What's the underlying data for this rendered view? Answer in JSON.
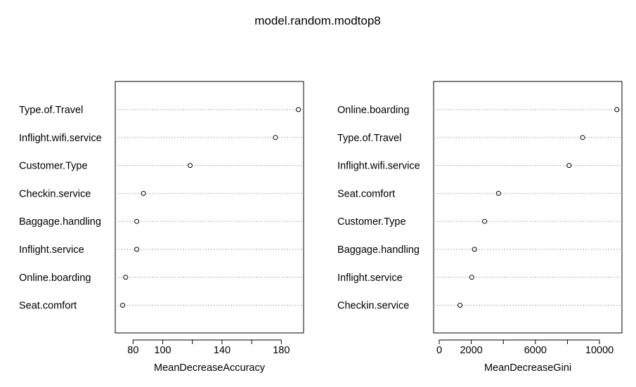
{
  "title": "model.random.modtop8",
  "chart_data": [
    {
      "type": "scatter",
      "style": "dotchart",
      "xlabel": "MeanDecreaseAccuracy",
      "xlim": [
        68,
        195
      ],
      "xticks": [
        80,
        100,
        140,
        180
      ],
      "minor_ticks": [
        120,
        160
      ],
      "categories": [
        "Type.of.Travel",
        "Inflight.wifi.service",
        "Customer.Type",
        "Checkin.service",
        "Baggage.handling",
        "Inflight.service",
        "Online.boarding",
        "Seat.comfort"
      ],
      "values": [
        191.5,
        176,
        118.5,
        87,
        82.5,
        82.5,
        75,
        73
      ]
    },
    {
      "type": "scatter",
      "style": "dotchart",
      "xlabel": "MeanDecreaseGini",
      "xlim": [
        -350,
        11400
      ],
      "xticks": [
        0,
        2000,
        6000,
        10000
      ],
      "minor_ticks": [
        4000,
        8000
      ],
      "categories": [
        "Online.boarding",
        "Type.of.Travel",
        "Inflight.wifi.service",
        "Seat.comfort",
        "Customer.Type",
        "Baggage.handling",
        "Inflight.service",
        "Checkin.service"
      ],
      "values": [
        11080,
        8950,
        8100,
        3700,
        2830,
        2200,
        2030,
        1300
      ]
    }
  ]
}
